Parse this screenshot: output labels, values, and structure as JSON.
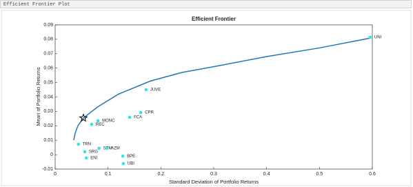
{
  "window": {
    "title": "Efficient Frontier Plot"
  },
  "chart_data": {
    "type": "scatter",
    "title": "Efficient Frontier",
    "x_label": "Standard Deviation of Portfolio Returns",
    "y_label": "Mean of Portfolio Returns",
    "xlim": [
      0,
      0.6
    ],
    "ylim": [
      -0.01,
      0.09
    ],
    "xticks": [
      0,
      0.1,
      0.2,
      0.3,
      0.4,
      0.5,
      0.6
    ],
    "yticks": [
      -0.01,
      0,
      0.01,
      0.02,
      0.03,
      0.04,
      0.05,
      0.06,
      0.07,
      0.08,
      0.09
    ],
    "grid": false,
    "series": [
      {
        "type": "line",
        "color": "#1f77b4",
        "x": [
          0.035,
          0.038,
          0.043,
          0.0535,
          0.08,
          0.12,
          0.18,
          0.24,
          0.3,
          0.4,
          0.5,
          0.596
        ],
        "values": [
          0.01,
          0.015,
          0.02,
          0.0254,
          0.033,
          0.042,
          0.051,
          0.057,
          0.061,
          0.068,
          0.074,
          0.0808
        ]
      },
      {
        "type": "scatter",
        "color": "#2ee6e6",
        "labels": [
          "UNI",
          "JUVE",
          "CPR",
          "FCA",
          "MONC",
          "REC",
          "TRN",
          "SPM",
          "AZM",
          "SRG",
          "ENI",
          "BPE",
          "UBI"
        ],
        "x": [
          0.596,
          0.172,
          0.162,
          0.141,
          0.081,
          0.069,
          0.044,
          0.083,
          0.098,
          0.056,
          0.059,
          0.128,
          0.129
        ],
        "values": [
          0.0814,
          0.045,
          0.0292,
          0.0259,
          0.0235,
          0.021,
          0.0072,
          0.0044,
          0.0044,
          0.002,
          -0.0023,
          -0.001,
          -0.0062
        ]
      },
      {
        "type": "marker",
        "marker": "star",
        "color": "#000000",
        "x": [
          0.0535
        ],
        "values": [
          0.0254
        ]
      }
    ]
  }
}
